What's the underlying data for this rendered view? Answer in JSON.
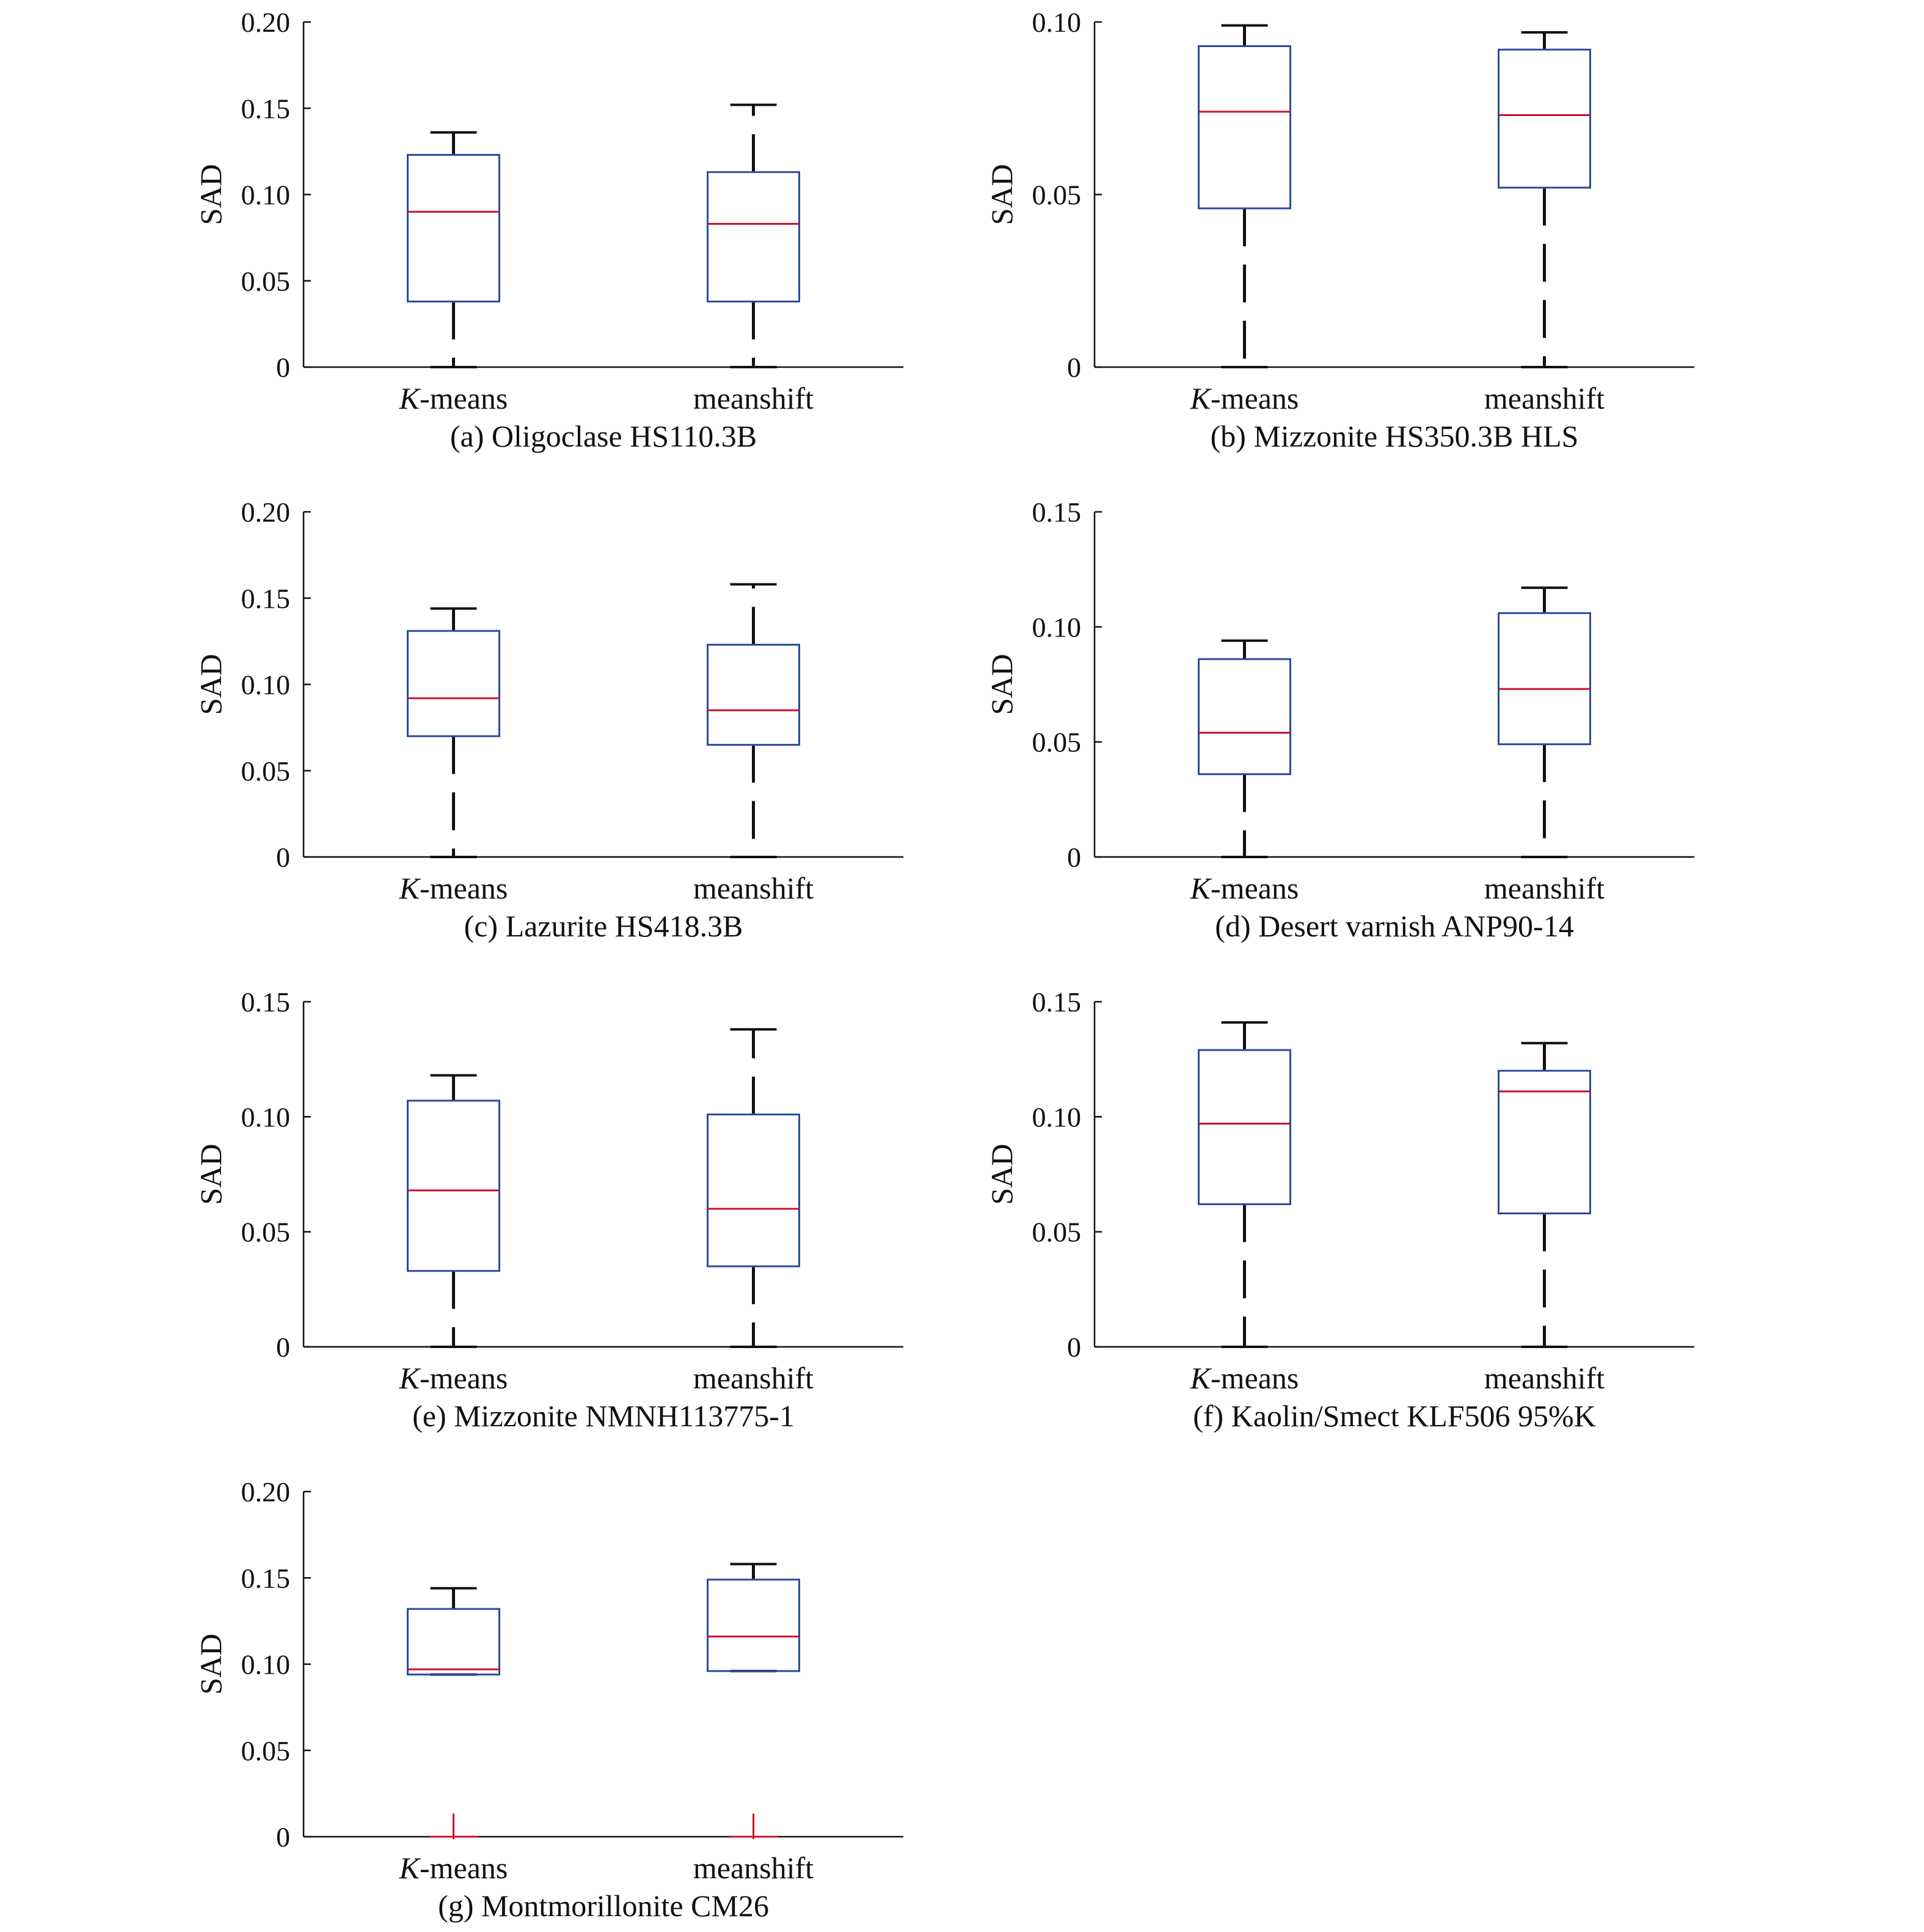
{
  "figure": {
    "colors": {
      "axis": "#111111",
      "box": "#2b4aa0",
      "median": "#c8102e",
      "whisker": "#111111",
      "outlier": "#c8102e"
    }
  },
  "chart_data": [
    {
      "id": "a",
      "type": "box",
      "caption": "(a) Oligoclase HS110.3B",
      "ylabel": "SAD",
      "ylim": [
        0,
        0.2
      ],
      "yticks": [
        0,
        0.05,
        0.1,
        0.15,
        0.2
      ],
      "ytick_labels": [
        "0",
        "0.05",
        "0.10",
        "0.15",
        "0.20"
      ],
      "categories": [
        {
          "prefix": "K",
          "suffix": "-means"
        },
        {
          "prefix": "",
          "suffix": "meanshift"
        }
      ],
      "boxes": [
        {
          "whisker_low": 0.0,
          "q1": 0.038,
          "median": 0.09,
          "q3": 0.123,
          "whisker_high": 0.136,
          "outliers": []
        },
        {
          "whisker_low": 0.0,
          "q1": 0.038,
          "median": 0.083,
          "q3": 0.113,
          "whisker_high": 0.152,
          "outliers": []
        }
      ]
    },
    {
      "id": "b",
      "type": "box",
      "caption": "(b) Mizzonite HS350.3B HLS",
      "ylabel": "SAD",
      "ylim": [
        0,
        0.1
      ],
      "yticks": [
        0,
        0.05,
        0.1
      ],
      "ytick_labels": [
        "0",
        "0.05",
        "0.10"
      ],
      "categories": [
        {
          "prefix": "K",
          "suffix": "-means"
        },
        {
          "prefix": "",
          "suffix": "meanshift"
        }
      ],
      "boxes": [
        {
          "whisker_low": 0.0,
          "q1": 0.046,
          "median": 0.074,
          "q3": 0.093,
          "whisker_high": 0.099,
          "outliers": []
        },
        {
          "whisker_low": 0.0,
          "q1": 0.052,
          "median": 0.073,
          "q3": 0.092,
          "whisker_high": 0.097,
          "outliers": []
        }
      ]
    },
    {
      "id": "c",
      "type": "box",
      "caption": "(c) Lazurite HS418.3B",
      "ylabel": "SAD",
      "ylim": [
        0,
        0.2
      ],
      "yticks": [
        0,
        0.05,
        0.1,
        0.15,
        0.2
      ],
      "ytick_labels": [
        "0",
        "0.05",
        "0.10",
        "0.15",
        "0.20"
      ],
      "categories": [
        {
          "prefix": "K",
          "suffix": "-means"
        },
        {
          "prefix": "",
          "suffix": "meanshift"
        }
      ],
      "boxes": [
        {
          "whisker_low": 0.0,
          "q1": 0.07,
          "median": 0.092,
          "q3": 0.131,
          "whisker_high": 0.144,
          "outliers": []
        },
        {
          "whisker_low": 0.0,
          "q1": 0.065,
          "median": 0.085,
          "q3": 0.123,
          "whisker_high": 0.158,
          "outliers": []
        }
      ]
    },
    {
      "id": "d",
      "type": "box",
      "caption": "(d) Desert varnish ANP90-14",
      "ylabel": "SAD",
      "ylim": [
        0,
        0.15
      ],
      "yticks": [
        0,
        0.05,
        0.1,
        0.15
      ],
      "ytick_labels": [
        "0",
        "0.05",
        "0.10",
        "0.15"
      ],
      "categories": [
        {
          "prefix": "K",
          "suffix": "-means"
        },
        {
          "prefix": "",
          "suffix": "meanshift"
        }
      ],
      "boxes": [
        {
          "whisker_low": 0.0,
          "q1": 0.036,
          "median": 0.054,
          "q3": 0.086,
          "whisker_high": 0.094,
          "outliers": []
        },
        {
          "whisker_low": 0.0,
          "q1": 0.049,
          "median": 0.073,
          "q3": 0.106,
          "whisker_high": 0.117,
          "outliers": []
        }
      ]
    },
    {
      "id": "e",
      "type": "box",
      "caption": "(e) Mizzonite NMNH113775-1",
      "ylabel": "SAD",
      "ylim": [
        0,
        0.15
      ],
      "yticks": [
        0,
        0.05,
        0.1,
        0.15
      ],
      "ytick_labels": [
        "0",
        "0.05",
        "0.10",
        "0.15"
      ],
      "categories": [
        {
          "prefix": "K",
          "suffix": "-means"
        },
        {
          "prefix": "",
          "suffix": "meanshift"
        }
      ],
      "boxes": [
        {
          "whisker_low": 0.0,
          "q1": 0.033,
          "median": 0.068,
          "q3": 0.107,
          "whisker_high": 0.118,
          "outliers": []
        },
        {
          "whisker_low": 0.0,
          "q1": 0.035,
          "median": 0.06,
          "q3": 0.101,
          "whisker_high": 0.138,
          "outliers": []
        }
      ]
    },
    {
      "id": "f",
      "type": "box",
      "caption": "(f) Kaolin/Smect KLF506 95%K",
      "ylabel": "SAD",
      "ylim": [
        0,
        0.15
      ],
      "yticks": [
        0,
        0.05,
        0.1,
        0.15
      ],
      "ytick_labels": [
        "0",
        "0.05",
        "0.10",
        "0.15"
      ],
      "categories": [
        {
          "prefix": "K",
          "suffix": "-means"
        },
        {
          "prefix": "",
          "suffix": "meanshift"
        }
      ],
      "boxes": [
        {
          "whisker_low": 0.0,
          "q1": 0.062,
          "median": 0.097,
          "q3": 0.129,
          "whisker_high": 0.141,
          "outliers": []
        },
        {
          "whisker_low": 0.0,
          "q1": 0.058,
          "median": 0.111,
          "q3": 0.12,
          "whisker_high": 0.132,
          "outliers": []
        }
      ]
    },
    {
      "id": "g",
      "type": "box",
      "caption": "(g) Montmorillonite CM26",
      "ylabel": "SAD",
      "ylim": [
        0,
        0.2
      ],
      "yticks": [
        0,
        0.05,
        0.1,
        0.15,
        0.2
      ],
      "ytick_labels": [
        "0",
        "0.05",
        "0.10",
        "0.15",
        "0.20"
      ],
      "categories": [
        {
          "prefix": "K",
          "suffix": "-means"
        },
        {
          "prefix": "",
          "suffix": "meanshift"
        }
      ],
      "boxes": [
        {
          "whisker_low": 0.094,
          "q1": 0.094,
          "median": 0.097,
          "q3": 0.132,
          "whisker_high": 0.144,
          "outliers": [
            0.0
          ]
        },
        {
          "whisker_low": 0.096,
          "q1": 0.096,
          "median": 0.116,
          "q3": 0.149,
          "whisker_high": 0.158,
          "outliers": [
            0.0
          ]
        }
      ]
    }
  ]
}
